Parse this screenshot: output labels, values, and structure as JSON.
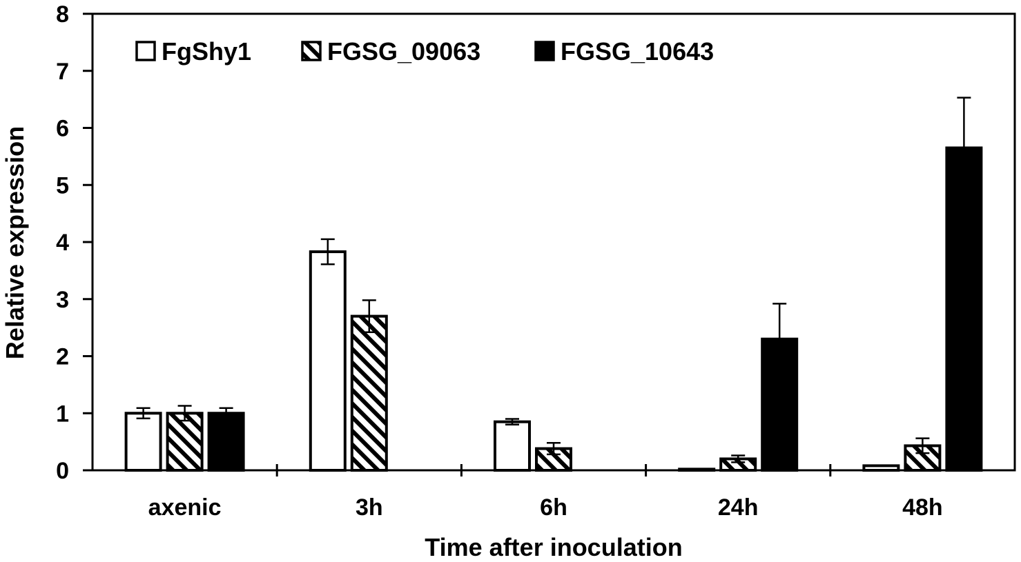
{
  "chart_data": {
    "type": "bar",
    "xlabel": "Time after inoculation",
    "ylabel": "Relative expression",
    "ylim": [
      0,
      8
    ],
    "yticks": [
      "0",
      "1",
      "2",
      "3",
      "4",
      "5",
      "6",
      "7",
      "8"
    ],
    "categories": [
      "axenic",
      "3h",
      "6h",
      "24h",
      "48h"
    ],
    "legend_position": "top-left",
    "grid": false,
    "series": [
      {
        "name": "FgShy1",
        "fill": "white",
        "values": [
          1.0,
          3.83,
          0.85,
          0.02,
          0.08
        ],
        "errors": [
          0.09,
          0.22,
          0.05,
          0.0,
          0.0
        ]
      },
      {
        "name": "FGSG_09063",
        "fill": "hatched",
        "values": [
          1.0,
          2.7,
          0.38,
          0.2,
          0.43
        ],
        "errors": [
          0.13,
          0.28,
          0.1,
          0.06,
          0.13
        ]
      },
      {
        "name": "FGSG_10643",
        "fill": "black",
        "values": [
          1.0,
          0.0,
          0.0,
          2.3,
          5.65
        ],
        "errors": [
          0.09,
          0.0,
          0.0,
          0.62,
          0.88
        ]
      }
    ]
  }
}
